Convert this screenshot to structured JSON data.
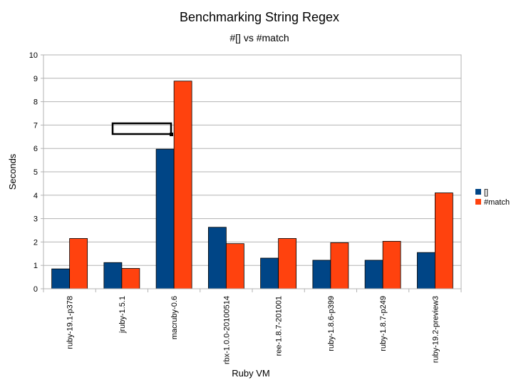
{
  "chart_data": {
    "type": "bar",
    "title": "Benchmarking String Regex",
    "subtitle": "#[] vs #match",
    "xlabel": "Ruby VM",
    "ylabel": "Seconds",
    "ylim": [
      0,
      10
    ],
    "yticks": [
      "0",
      "1",
      "2",
      "3",
      "4",
      "5",
      "6",
      "7",
      "8",
      "9",
      "10"
    ],
    "categories": [
      "ruby-19.1-p378",
      "jruby-1.5.1",
      "macruby-0.6",
      "rbx-1.0.0-20100514",
      "ree-1.8.7-201001",
      "ruby-1.8.6-p399",
      "ruby-1.8.7-p249",
      "ruby-19.2-preview3"
    ],
    "series": [
      {
        "name": "[]",
        "color": "#004586",
        "values": [
          0.85,
          1.12,
          5.97,
          2.63,
          1.31,
          1.22,
          1.22,
          1.55
        ]
      },
      {
        "name": "#match",
        "color": "#ff420e",
        "values": [
          2.15,
          0.87,
          8.88,
          1.93,
          2.15,
          1.97,
          2.03,
          4.1
        ]
      }
    ],
    "grid": true,
    "legend_position": "right"
  }
}
